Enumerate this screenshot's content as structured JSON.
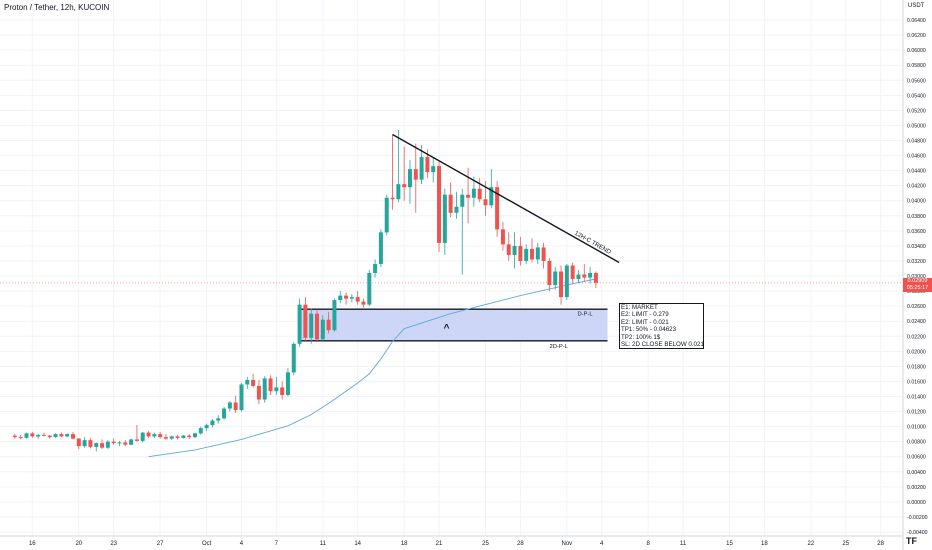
{
  "header": {
    "title": "Proton / Tether, 12h, KUCOIN"
  },
  "price_axis": {
    "unit": "USDT"
  },
  "last_price": {
    "value": "0.02909",
    "countdown": "05:25:17"
  },
  "annotations": {
    "trendline_label": "12H-C TREND",
    "zone_top_label": "D-P-L",
    "zone_bottom_label": "2D-P-L",
    "zone_marker": "^",
    "trade_plan": [
      "E1: MARKET",
      "E2: LIMIT - 0.279",
      "E2: LIMIT - 0.021",
      "TP1: 50% - 0.04623",
      "TP2: 100% 1$",
      "SL: 2D CLOSE BELOW 0.021"
    ]
  },
  "logo": {
    "text": "TF"
  },
  "colors": {
    "up": "#26a69a",
    "down": "#ef5350",
    "ma": "#5ea9dd",
    "zone_fill": "#c5cff7",
    "trend": "#131722"
  },
  "chart_data": {
    "type": "candlestick",
    "title": "Proton / Tether, 12h, KUCOIN",
    "y_unit": "USDT",
    "ylim": [
      -0.004,
      0.066
    ],
    "y_ticks": [
      0.066,
      0.064,
      0.062,
      0.06,
      0.058,
      0.056,
      0.054,
      0.052,
      0.05,
      0.048,
      0.046,
      0.044,
      0.042,
      0.04,
      0.038,
      0.036,
      0.034,
      0.032,
      0.03,
      0.028,
      0.026,
      0.024,
      0.022,
      0.02,
      0.018,
      0.016,
      0.014,
      0.012,
      0.01,
      0.008,
      0.006,
      0.004,
      0.002,
      0.0,
      -0.002,
      -0.004
    ],
    "y_tick_labels": [
      "0.06600",
      "0.06400",
      "0.06200",
      "0.06000",
      "0.05800",
      "0.05600",
      "0.05400",
      "0.05200",
      "0.05000",
      "0.04800",
      "0.04600",
      "0.04400",
      "0.04200",
      "0.04000",
      "0.03800",
      "0.03600",
      "0.03400",
      "0.03200",
      "0.03000",
      "0.02800",
      "0.02600",
      "0.02400",
      "0.02200",
      "0.02000",
      "0.01800",
      "0.01600",
      "0.01400",
      "0.01200",
      "0.01000",
      "0.00800",
      "0.00600",
      "0.00400",
      "0.00200",
      "0.00000",
      "-0.00200",
      "-0.00400"
    ],
    "x_ticks": [
      "16",
      "20",
      "23",
      "27",
      "Oct",
      "4",
      "7",
      "11",
      "14",
      "18",
      "21",
      "25",
      "28",
      "Nov",
      "4",
      "8",
      "11",
      "15",
      "18",
      "22",
      "25",
      "28"
    ],
    "x_tick_days": [
      -14,
      -10,
      -7,
      -3,
      1,
      4,
      7,
      11,
      14,
      18,
      21,
      25,
      28,
      32,
      35,
      39,
      42,
      46,
      49,
      53,
      56,
      59
    ],
    "candles": [
      {
        "d": -15.5,
        "o": 0.0088,
        "h": 0.009,
        "l": 0.0084,
        "c": 0.0086
      },
      {
        "d": -15.0,
        "o": 0.0086,
        "h": 0.0089,
        "l": 0.0083,
        "c": 0.0085
      },
      {
        "d": -14.5,
        "o": 0.0085,
        "h": 0.0092,
        "l": 0.0084,
        "c": 0.0091
      },
      {
        "d": -14.0,
        "o": 0.0091,
        "h": 0.0093,
        "l": 0.0085,
        "c": 0.0087
      },
      {
        "d": -13.5,
        "o": 0.0087,
        "h": 0.009,
        "l": 0.0084,
        "c": 0.0089
      },
      {
        "d": -13.0,
        "o": 0.0089,
        "h": 0.0092,
        "l": 0.0087,
        "c": 0.0088
      },
      {
        "d": -12.5,
        "o": 0.0088,
        "h": 0.0089,
        "l": 0.0084,
        "c": 0.0086
      },
      {
        "d": -12.0,
        "o": 0.0086,
        "h": 0.0091,
        "l": 0.0085,
        "c": 0.009
      },
      {
        "d": -11.5,
        "o": 0.009,
        "h": 0.0092,
        "l": 0.0086,
        "c": 0.0087
      },
      {
        "d": -11.0,
        "o": 0.0087,
        "h": 0.0091,
        "l": 0.0086,
        "c": 0.009
      },
      {
        "d": -10.5,
        "o": 0.009,
        "h": 0.0093,
        "l": 0.0083,
        "c": 0.0084
      },
      {
        "d": -10.0,
        "o": 0.0084,
        "h": 0.0085,
        "l": 0.007,
        "c": 0.0074
      },
      {
        "d": -9.5,
        "o": 0.0074,
        "h": 0.0086,
        "l": 0.0072,
        "c": 0.0082
      },
      {
        "d": -9.0,
        "o": 0.0082,
        "h": 0.0085,
        "l": 0.0071,
        "c": 0.0073
      },
      {
        "d": -8.5,
        "o": 0.0073,
        "h": 0.0079,
        "l": 0.0067,
        "c": 0.0078
      },
      {
        "d": -8.0,
        "o": 0.0078,
        "h": 0.0083,
        "l": 0.007,
        "c": 0.0072
      },
      {
        "d": -7.5,
        "o": 0.0072,
        "h": 0.0082,
        "l": 0.007,
        "c": 0.008
      },
      {
        "d": -7.0,
        "o": 0.008,
        "h": 0.0084,
        "l": 0.0076,
        "c": 0.0078
      },
      {
        "d": -6.5,
        "o": 0.0078,
        "h": 0.0081,
        "l": 0.0074,
        "c": 0.0079
      },
      {
        "d": -6.0,
        "o": 0.0079,
        "h": 0.0082,
        "l": 0.0074,
        "c": 0.0076
      },
      {
        "d": -5.5,
        "o": 0.0076,
        "h": 0.0084,
        "l": 0.0075,
        "c": 0.0083
      },
      {
        "d": -5.0,
        "o": 0.0083,
        "h": 0.0102,
        "l": 0.008,
        "c": 0.0081
      },
      {
        "d": -4.5,
        "o": 0.0081,
        "h": 0.0093,
        "l": 0.0079,
        "c": 0.0092
      },
      {
        "d": -4.0,
        "o": 0.0092,
        "h": 0.0094,
        "l": 0.0085,
        "c": 0.0087
      },
      {
        "d": -3.5,
        "o": 0.0087,
        "h": 0.0092,
        "l": 0.0085,
        "c": 0.009
      },
      {
        "d": -3.0,
        "o": 0.009,
        "h": 0.0093,
        "l": 0.0084,
        "c": 0.0086
      },
      {
        "d": -2.5,
        "o": 0.0086,
        "h": 0.009,
        "l": 0.0082,
        "c": 0.0084
      },
      {
        "d": -2.0,
        "o": 0.0084,
        "h": 0.0088,
        "l": 0.0082,
        "c": 0.0087
      },
      {
        "d": -1.5,
        "o": 0.0087,
        "h": 0.0089,
        "l": 0.0083,
        "c": 0.0085
      },
      {
        "d": -1.0,
        "o": 0.0085,
        "h": 0.0089,
        "l": 0.0084,
        "c": 0.0088
      },
      {
        "d": -0.5,
        "o": 0.0088,
        "h": 0.009,
        "l": 0.0084,
        "c": 0.0086
      },
      {
        "d": 0.0,
        "o": 0.0086,
        "h": 0.0092,
        "l": 0.0085,
        "c": 0.0091
      },
      {
        "d": 0.5,
        "o": 0.0091,
        "h": 0.01,
        "l": 0.0089,
        "c": 0.0098
      },
      {
        "d": 1.0,
        "o": 0.0098,
        "h": 0.0104,
        "l": 0.0094,
        "c": 0.0102
      },
      {
        "d": 1.5,
        "o": 0.0102,
        "h": 0.011,
        "l": 0.0099,
        "c": 0.0108
      },
      {
        "d": 2.0,
        "o": 0.0108,
        "h": 0.0115,
        "l": 0.0104,
        "c": 0.0111
      },
      {
        "d": 2.5,
        "o": 0.0111,
        "h": 0.0126,
        "l": 0.0109,
        "c": 0.0124
      },
      {
        "d": 3.0,
        "o": 0.0124,
        "h": 0.0134,
        "l": 0.012,
        "c": 0.0132
      },
      {
        "d": 3.5,
        "o": 0.0132,
        "h": 0.0141,
        "l": 0.0118,
        "c": 0.0122
      },
      {
        "d": 4.0,
        "o": 0.0122,
        "h": 0.0158,
        "l": 0.012,
        "c": 0.0156
      },
      {
        "d": 4.5,
        "o": 0.0156,
        "h": 0.0166,
        "l": 0.015,
        "c": 0.0162
      },
      {
        "d": 5.0,
        "o": 0.0162,
        "h": 0.017,
        "l": 0.0152,
        "c": 0.0154
      },
      {
        "d": 5.5,
        "o": 0.0154,
        "h": 0.0162,
        "l": 0.013,
        "c": 0.0136
      },
      {
        "d": 6.0,
        "o": 0.0136,
        "h": 0.0167,
        "l": 0.0132,
        "c": 0.0164
      },
      {
        "d": 6.5,
        "o": 0.0164,
        "h": 0.0168,
        "l": 0.0142,
        "c": 0.0147
      },
      {
        "d": 7.0,
        "o": 0.0147,
        "h": 0.0166,
        "l": 0.0142,
        "c": 0.0152
      },
      {
        "d": 7.5,
        "o": 0.0152,
        "h": 0.016,
        "l": 0.0136,
        "c": 0.0142
      },
      {
        "d": 8.0,
        "o": 0.0142,
        "h": 0.0178,
        "l": 0.014,
        "c": 0.0172
      },
      {
        "d": 8.5,
        "o": 0.0172,
        "h": 0.0212,
        "l": 0.0168,
        "c": 0.021
      },
      {
        "d": 9.0,
        "o": 0.021,
        "h": 0.027,
        "l": 0.0206,
        "c": 0.0262
      },
      {
        "d": 9.5,
        "o": 0.0262,
        "h": 0.0272,
        "l": 0.0214,
        "c": 0.0218
      },
      {
        "d": 10.0,
        "o": 0.0218,
        "h": 0.0257,
        "l": 0.021,
        "c": 0.025
      },
      {
        "d": 10.5,
        "o": 0.025,
        "h": 0.0256,
        "l": 0.0212,
        "c": 0.0216
      },
      {
        "d": 11.0,
        "o": 0.0216,
        "h": 0.0248,
        "l": 0.0214,
        "c": 0.0242
      },
      {
        "d": 11.5,
        "o": 0.0242,
        "h": 0.0252,
        "l": 0.0224,
        "c": 0.0228
      },
      {
        "d": 12.0,
        "o": 0.0228,
        "h": 0.027,
        "l": 0.0226,
        "c": 0.0268
      },
      {
        "d": 12.5,
        "o": 0.0268,
        "h": 0.028,
        "l": 0.0264,
        "c": 0.0274
      },
      {
        "d": 13.0,
        "o": 0.0274,
        "h": 0.0278,
        "l": 0.0262,
        "c": 0.027
      },
      {
        "d": 13.5,
        "o": 0.027,
        "h": 0.0276,
        "l": 0.0265,
        "c": 0.0272
      },
      {
        "d": 14.0,
        "o": 0.0272,
        "h": 0.028,
        "l": 0.0262,
        "c": 0.0266
      },
      {
        "d": 14.5,
        "o": 0.0266,
        "h": 0.027,
        "l": 0.0258,
        "c": 0.0262
      },
      {
        "d": 15.0,
        "o": 0.0262,
        "h": 0.0308,
        "l": 0.026,
        "c": 0.0304
      },
      {
        "d": 15.5,
        "o": 0.0304,
        "h": 0.0322,
        "l": 0.0298,
        "c": 0.0316
      },
      {
        "d": 16.0,
        "o": 0.0316,
        "h": 0.0362,
        "l": 0.0312,
        "c": 0.0358
      },
      {
        "d": 16.5,
        "o": 0.0358,
        "h": 0.0408,
        "l": 0.0354,
        "c": 0.0404
      },
      {
        "d": 17.0,
        "o": 0.0404,
        "h": 0.0488,
        "l": 0.0388,
        "c": 0.0402
      },
      {
        "d": 17.5,
        "o": 0.0402,
        "h": 0.0494,
        "l": 0.0398,
        "c": 0.0422
      },
      {
        "d": 18.0,
        "o": 0.0422,
        "h": 0.0472,
        "l": 0.04,
        "c": 0.0418
      },
      {
        "d": 18.5,
        "o": 0.0418,
        "h": 0.0454,
        "l": 0.0396,
        "c": 0.0442
      },
      {
        "d": 19.0,
        "o": 0.0442,
        "h": 0.0476,
        "l": 0.0384,
        "c": 0.0428
      },
      {
        "d": 19.5,
        "o": 0.0428,
        "h": 0.0474,
        "l": 0.0422,
        "c": 0.0458
      },
      {
        "d": 20.0,
        "o": 0.0458,
        "h": 0.0468,
        "l": 0.043,
        "c": 0.0438
      },
      {
        "d": 20.5,
        "o": 0.0438,
        "h": 0.0458,
        "l": 0.0424,
        "c": 0.0446
      },
      {
        "d": 21.0,
        "o": 0.0446,
        "h": 0.0452,
        "l": 0.0332,
        "c": 0.0344
      },
      {
        "d": 21.5,
        "o": 0.0344,
        "h": 0.0416,
        "l": 0.0328,
        "c": 0.0408
      },
      {
        "d": 22.0,
        "o": 0.0408,
        "h": 0.0424,
        "l": 0.0378,
        "c": 0.0384
      },
      {
        "d": 22.5,
        "o": 0.0384,
        "h": 0.0412,
        "l": 0.0376,
        "c": 0.0392
      },
      {
        "d": 23.0,
        "o": 0.0392,
        "h": 0.0416,
        "l": 0.0302,
        "c": 0.0408
      },
      {
        "d": 23.5,
        "o": 0.0408,
        "h": 0.0444,
        "l": 0.037,
        "c": 0.0404
      },
      {
        "d": 24.0,
        "o": 0.0404,
        "h": 0.0432,
        "l": 0.0392,
        "c": 0.0416
      },
      {
        "d": 24.5,
        "o": 0.0416,
        "h": 0.043,
        "l": 0.0398,
        "c": 0.0402
      },
      {
        "d": 25.0,
        "o": 0.0402,
        "h": 0.0426,
        "l": 0.038,
        "c": 0.0394
      },
      {
        "d": 25.5,
        "o": 0.0394,
        "h": 0.0442,
        "l": 0.039,
        "c": 0.0418
      },
      {
        "d": 26.0,
        "o": 0.0418,
        "h": 0.0426,
        "l": 0.0352,
        "c": 0.0362
      },
      {
        "d": 26.5,
        "o": 0.0362,
        "h": 0.0372,
        "l": 0.0334,
        "c": 0.0342
      },
      {
        "d": 27.0,
        "o": 0.0342,
        "h": 0.0358,
        "l": 0.032,
        "c": 0.0328
      },
      {
        "d": 27.5,
        "o": 0.0328,
        "h": 0.0358,
        "l": 0.031,
        "c": 0.034
      },
      {
        "d": 28.0,
        "o": 0.034,
        "h": 0.0352,
        "l": 0.0314,
        "c": 0.032
      },
      {
        "d": 28.5,
        "o": 0.032,
        "h": 0.0342,
        "l": 0.0316,
        "c": 0.0336
      },
      {
        "d": 29.0,
        "o": 0.0336,
        "h": 0.035,
        "l": 0.0318,
        "c": 0.0322
      },
      {
        "d": 29.5,
        "o": 0.0322,
        "h": 0.0344,
        "l": 0.0316,
        "c": 0.0338
      },
      {
        "d": 30.0,
        "o": 0.0338,
        "h": 0.0344,
        "l": 0.031,
        "c": 0.032
      },
      {
        "d": 30.5,
        "o": 0.032,
        "h": 0.0324,
        "l": 0.028,
        "c": 0.0288
      },
      {
        "d": 31.0,
        "o": 0.0288,
        "h": 0.0312,
        "l": 0.0282,
        "c": 0.0306
      },
      {
        "d": 31.5,
        "o": 0.0306,
        "h": 0.0314,
        "l": 0.0262,
        "c": 0.0272
      },
      {
        "d": 32.0,
        "o": 0.0272,
        "h": 0.0316,
        "l": 0.0268,
        "c": 0.0314
      },
      {
        "d": 32.5,
        "o": 0.0314,
        "h": 0.0318,
        "l": 0.029,
        "c": 0.0296
      },
      {
        "d": 33.0,
        "o": 0.0296,
        "h": 0.0308,
        "l": 0.029,
        "c": 0.0302
      },
      {
        "d": 33.5,
        "o": 0.0302,
        "h": 0.0316,
        "l": 0.0292,
        "c": 0.0298
      },
      {
        "d": 34.0,
        "o": 0.0298,
        "h": 0.0312,
        "l": 0.029,
        "c": 0.0304
      },
      {
        "d": 34.5,
        "o": 0.0304,
        "h": 0.0306,
        "l": 0.0284,
        "c": 0.0291
      }
    ],
    "moving_average": {
      "points": [
        [
          -4,
          0.006
        ],
        [
          0,
          0.0069
        ],
        [
          4,
          0.0083
        ],
        [
          8,
          0.0101
        ],
        [
          10,
          0.0116
        ],
        [
          12,
          0.0136
        ],
        [
          14,
          0.0158
        ],
        [
          15,
          0.017
        ],
        [
          16,
          0.019
        ],
        [
          17,
          0.0213
        ],
        [
          18,
          0.023
        ],
        [
          20,
          0.024
        ],
        [
          22,
          0.025
        ],
        [
          24,
          0.0258
        ],
        [
          26,
          0.0266
        ],
        [
          28,
          0.0274
        ],
        [
          30,
          0.0281
        ],
        [
          32,
          0.0288
        ],
        [
          33.5,
          0.0293
        ],
        [
          34.5,
          0.0296
        ]
      ]
    },
    "trendline": {
      "start": [
        17.0,
        0.0488
      ],
      "end": [
        36.5,
        0.0318
      ]
    },
    "support_zone": {
      "x_start": 9.0,
      "x_end": 35.5,
      "y_top": 0.0256,
      "y_bottom": 0.0214
    },
    "last_price": 0.02909
  }
}
